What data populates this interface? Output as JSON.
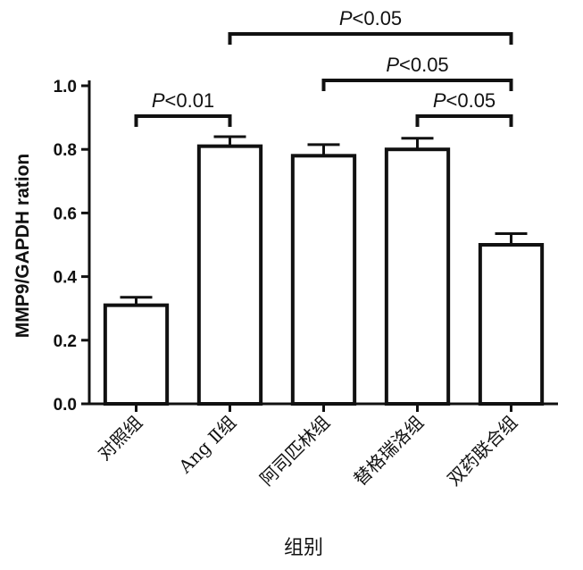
{
  "chart_data": {
    "type": "bar",
    "categories": [
      "对照组",
      "Ang Ⅱ组",
      "阿司匹林组",
      "替格瑞洛组",
      "双药联合组"
    ],
    "values": [
      0.31,
      0.81,
      0.78,
      0.8,
      0.5
    ],
    "errors": [
      0.025,
      0.03,
      0.035,
      0.035,
      0.035
    ],
    "xlabel": "组别",
    "ylabel": "MMP9/GAPDH ration",
    "ylim": [
      0,
      1.0
    ],
    "yticks": [
      "0.0",
      "0.2",
      "0.4",
      "0.6",
      "0.8",
      "1.0"
    ],
    "grid": false,
    "significance": [
      {
        "from": 0,
        "to": 1,
        "label": "P<0.01"
      },
      {
        "from": 1,
        "to": 4,
        "label": "P<0.05"
      },
      {
        "from": 2,
        "to": 4,
        "label": "P<0.05"
      },
      {
        "from": 3,
        "to": 4,
        "label": "P<0.05"
      }
    ]
  }
}
